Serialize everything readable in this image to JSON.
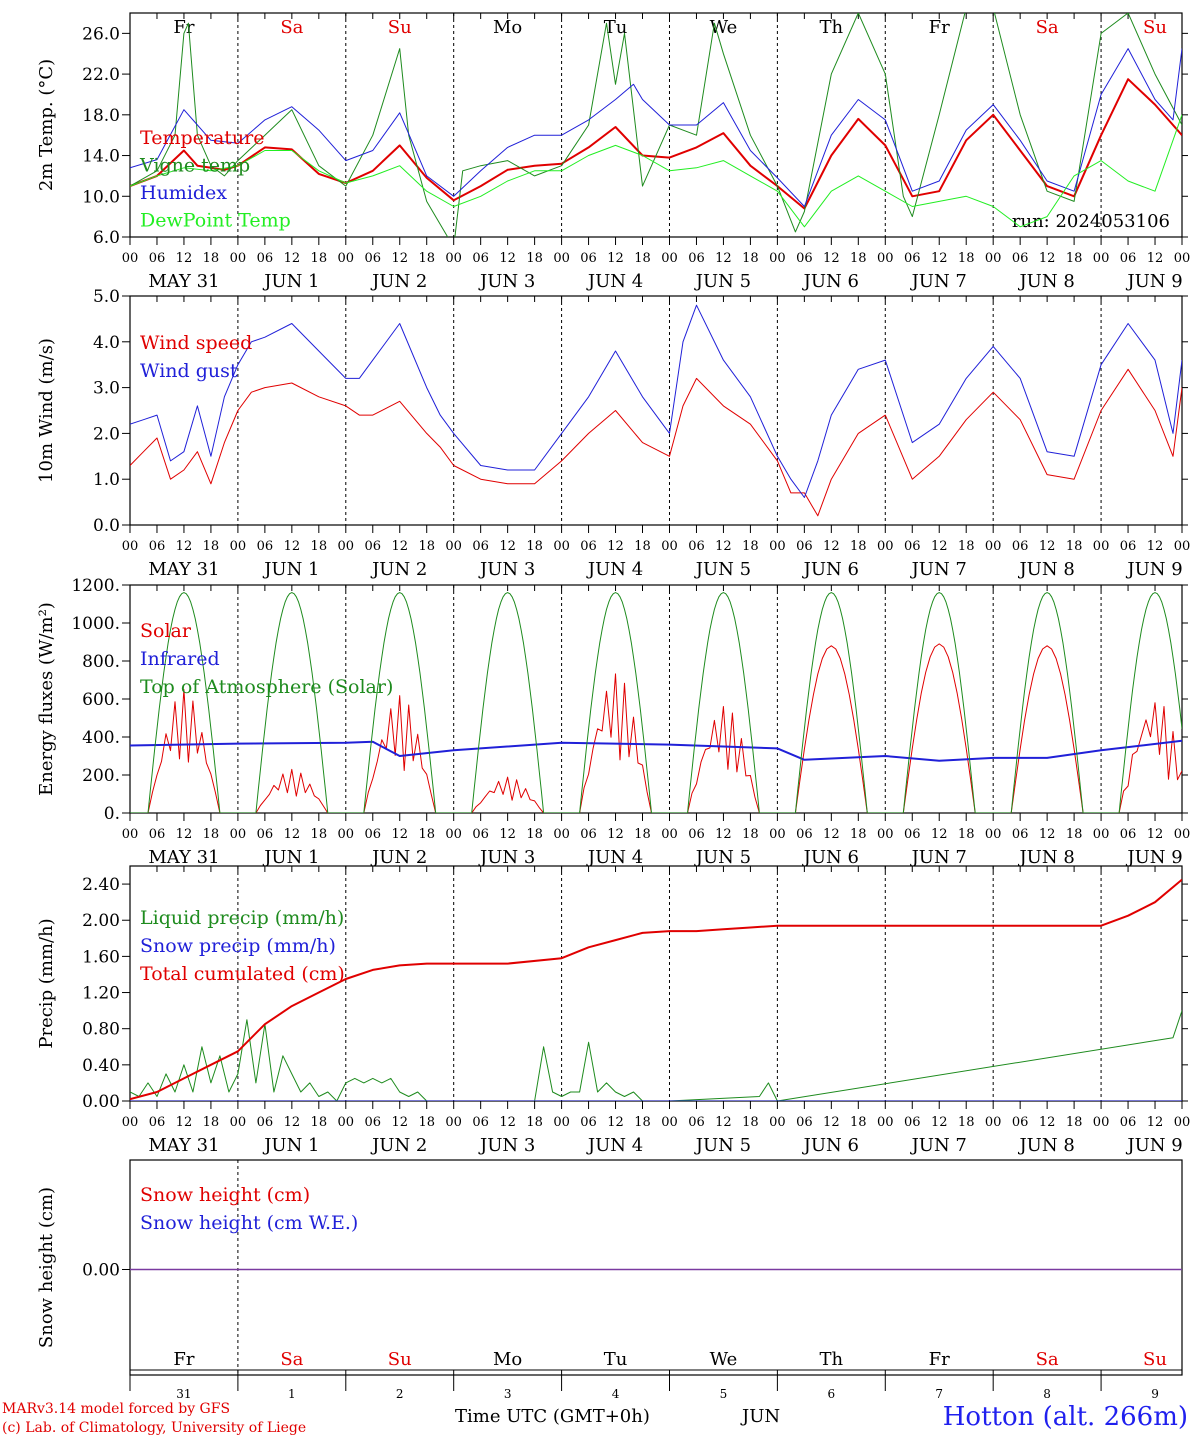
{
  "footer": {
    "model": "MARv3.14 model forced by GFS",
    "credit": "(c) Lab. of Climatology, University of Liege",
    "station": "Hotton (alt. 266m)",
    "time_title": "Time UTC (GMT+0h)",
    "month": "JUN"
  },
  "axis": {
    "hour_ticks": [
      "00",
      "06",
      "12",
      "18"
    ],
    "final_tick": "00",
    "dates": [
      "MAY 31",
      "JUN  1",
      "JUN  2",
      "JUN  3",
      "JUN  4",
      "JUN  5",
      "JUN  6",
      "JUN  7",
      "JUN  8",
      "JUN  9"
    ],
    "weekdays": [
      "Fr",
      "Sa",
      "Su",
      "Mo",
      "Tu",
      "We",
      "Th",
      "Fr",
      "Sa",
      "Su"
    ],
    "weekend_color": "#e00000",
    "weekday_color": "#000000",
    "day_numbers": [
      "31",
      "1",
      "2",
      "3",
      "4",
      "5",
      "6",
      "7",
      "8",
      "9"
    ]
  },
  "chart_data": [
    {
      "type": "line",
      "ylabel": "2m Temp. (°C)",
      "ylim": [
        6,
        28
      ],
      "yticks": [
        "6.0",
        "10.0",
        "14.0",
        "18.0",
        "22.0",
        "26.0"
      ],
      "annotation": "run: 2024053106",
      "x_unit": "hours since MAY 31 00 UTC",
      "series": [
        {
          "name": "Temperature",
          "color": "#e00000",
          "width": 2,
          "x": [
            0,
            6,
            12,
            15,
            18,
            21,
            24,
            30,
            36,
            42,
            48,
            54,
            60,
            66,
            72,
            78,
            84,
            90,
            96,
            102,
            108,
            114,
            120,
            126,
            132,
            138,
            144,
            150,
            156,
            162,
            168,
            174,
            180,
            186,
            192,
            198,
            204,
            210,
            216,
            222,
            228,
            234
          ],
          "y": [
            11.0,
            12.0,
            14.5,
            13.0,
            12.8,
            12.6,
            13.0,
            14.8,
            14.6,
            12.2,
            11.3,
            12.5,
            15.0,
            11.8,
            9.6,
            11.0,
            12.6,
            13.0,
            13.2,
            14.8,
            16.8,
            14.0,
            13.8,
            14.8,
            16.2,
            13.0,
            11.0,
            8.8,
            14.0,
            17.6,
            15.0,
            10.0,
            10.5,
            15.5,
            18.0,
            14.5,
            11.0,
            10.0,
            16.0,
            21.5,
            19.0,
            16.0
          ]
        },
        {
          "name": "Vigne temp",
          "color": "#1e8b1e",
          "width": 1,
          "x": [
            0,
            6,
            10,
            12,
            13,
            15,
            18,
            21,
            24,
            30,
            36,
            42,
            48,
            54,
            60,
            62,
            66,
            72,
            74,
            78,
            84,
            90,
            96,
            102,
            106,
            108,
            110,
            114,
            120,
            126,
            130,
            132,
            138,
            144,
            148,
            150,
            156,
            162,
            168,
            172,
            174,
            180,
            186,
            192,
            198,
            204,
            210,
            216,
            222,
            228,
            234
          ],
          "y": [
            11.0,
            12.5,
            16.0,
            26.0,
            27.0,
            16.0,
            13.0,
            12.0,
            13.5,
            16.0,
            18.5,
            13.0,
            11.0,
            16.0,
            24.5,
            16.0,
            9.5,
            5.0,
            12.5,
            13.0,
            13.5,
            12.0,
            13.0,
            17.0,
            27.0,
            21.0,
            26.0,
            11.0,
            17.0,
            16.0,
            27.0,
            24.0,
            16.0,
            11.0,
            6.5,
            8.5,
            22.0,
            28.0,
            22.0,
            10.0,
            8.0,
            18.0,
            28.5,
            28.5,
            18.0,
            10.5,
            9.5,
            26.0,
            28.0,
            22.0,
            17.0
          ]
        },
        {
          "name": "Humidex",
          "color": "#2020d8",
          "width": 1,
          "x": [
            0,
            6,
            12,
            15,
            18,
            24,
            30,
            36,
            42,
            48,
            54,
            60,
            66,
            72,
            78,
            84,
            90,
            96,
            102,
            108,
            112,
            114,
            120,
            126,
            132,
            138,
            144,
            150,
            156,
            162,
            168,
            174,
            180,
            186,
            192,
            198,
            204,
            210,
            216,
            222,
            228,
            232,
            234
          ],
          "y": [
            12.8,
            13.6,
            18.5,
            17.0,
            15.5,
            15.2,
            17.5,
            18.8,
            16.5,
            13.5,
            14.5,
            18.2,
            12.0,
            10.0,
            12.5,
            14.8,
            16.0,
            16.0,
            17.5,
            19.5,
            21.0,
            19.5,
            17.0,
            17.0,
            19.2,
            14.5,
            11.8,
            9.0,
            16.0,
            19.5,
            17.5,
            10.5,
            11.5,
            16.5,
            19.0,
            15.5,
            11.5,
            10.5,
            20.0,
            24.5,
            19.5,
            17.5,
            24.5
          ]
        },
        {
          "name": "DewPoint Temp",
          "color": "#22ee22",
          "width": 1,
          "x": [
            0,
            6,
            12,
            18,
            24,
            30,
            36,
            42,
            48,
            54,
            60,
            66,
            72,
            78,
            84,
            90,
            96,
            102,
            108,
            114,
            120,
            126,
            132,
            138,
            144,
            150,
            156,
            162,
            168,
            174,
            180,
            186,
            192,
            198,
            204,
            210,
            216,
            222,
            228,
            234
          ],
          "y": [
            11.0,
            12.0,
            12.8,
            12.5,
            13.0,
            14.5,
            14.5,
            12.5,
            11.3,
            12.0,
            13.0,
            10.5,
            9.0,
            10.0,
            11.5,
            12.5,
            12.5,
            14.0,
            15.0,
            14.0,
            12.5,
            12.8,
            13.5,
            12.0,
            10.5,
            7.0,
            10.5,
            12.0,
            10.5,
            9.0,
            9.5,
            10.0,
            9.0,
            7.0,
            8.0,
            12.0,
            13.5,
            11.5,
            10.5,
            18.0
          ]
        }
      ]
    },
    {
      "type": "line",
      "ylabel": "10m Wind (m/s)",
      "ylim": [
        0,
        5
      ],
      "yticks": [
        "0.0",
        "1.0",
        "2.0",
        "3.0",
        "4.0",
        "5.0"
      ],
      "x_unit": "hours since MAY 31 00 UTC",
      "series": [
        {
          "name": "Wind speed",
          "color": "#e00000",
          "width": 1,
          "x": [
            0,
            3,
            6,
            9,
            12,
            15,
            18,
            21,
            24,
            27,
            30,
            36,
            42,
            48,
            51,
            54,
            60,
            66,
            69,
            72,
            78,
            84,
            90,
            96,
            102,
            108,
            114,
            120,
            123,
            126,
            132,
            138,
            144,
            147,
            150,
            153,
            156,
            162,
            168,
            174,
            180,
            186,
            192,
            198,
            204,
            210,
            216,
            222,
            228,
            232,
            234
          ],
          "y": [
            1.3,
            1.6,
            1.9,
            1.0,
            1.2,
            1.6,
            0.9,
            1.8,
            2.5,
            2.9,
            3.0,
            3.1,
            2.8,
            2.6,
            2.4,
            2.4,
            2.7,
            2.0,
            1.7,
            1.3,
            1.0,
            0.9,
            0.9,
            1.4,
            2.0,
            2.5,
            1.8,
            1.5,
            2.6,
            3.2,
            2.6,
            2.2,
            1.4,
            0.7,
            0.7,
            0.2,
            1.0,
            2.0,
            2.4,
            1.0,
            1.5,
            2.3,
            2.9,
            2.3,
            1.1,
            1.0,
            2.5,
            3.4,
            2.5,
            1.5,
            3.0
          ]
        },
        {
          "name": "Wind gust",
          "color": "#2020d8",
          "width": 1,
          "x": [
            0,
            3,
            6,
            9,
            12,
            15,
            18,
            21,
            24,
            27,
            30,
            36,
            42,
            48,
            51,
            54,
            60,
            66,
            69,
            72,
            78,
            84,
            90,
            96,
            102,
            108,
            114,
            120,
            123,
            126,
            132,
            138,
            144,
            147,
            150,
            153,
            156,
            162,
            168,
            174,
            180,
            186,
            192,
            198,
            204,
            210,
            216,
            222,
            228,
            232,
            234
          ],
          "y": [
            2.2,
            2.3,
            2.4,
            1.4,
            1.6,
            2.6,
            1.5,
            2.8,
            3.5,
            4.0,
            4.1,
            4.4,
            3.8,
            3.2,
            3.2,
            3.6,
            4.4,
            3.0,
            2.4,
            2.0,
            1.3,
            1.2,
            1.2,
            2.0,
            2.8,
            3.8,
            2.8,
            2.0,
            4.0,
            4.8,
            3.6,
            2.8,
            1.5,
            1.0,
            0.6,
            1.4,
            2.4,
            3.4,
            3.6,
            1.8,
            2.2,
            3.2,
            3.9,
            3.2,
            1.6,
            1.5,
            3.5,
            4.4,
            3.6,
            2.0,
            3.6
          ]
        }
      ]
    },
    {
      "type": "line",
      "ylabel": "Energy fluxes (W/m²)",
      "ylim": [
        0,
        1200
      ],
      "yticks": [
        "0.",
        "200.",
        "400.",
        "600.",
        "800.",
        "1000.",
        "1200."
      ],
      "x_unit": "hours since MAY 31 00 UTC",
      "series": [
        {
          "name": "Solar",
          "color": "#e00000",
          "width": 1,
          "daily_peaks": [
            650,
            230,
            620,
            190,
            740,
            570,
            880,
            890,
            880,
            610
          ]
        },
        {
          "name": "Infrared",
          "color": "#2020d8",
          "width": 2,
          "x": [
            0,
            24,
            48,
            54,
            60,
            72,
            96,
            120,
            132,
            144,
            150,
            168,
            180,
            192,
            204,
            216,
            234
          ],
          "y": [
            355,
            365,
            370,
            375,
            300,
            330,
            370,
            360,
            350,
            340,
            280,
            300,
            275,
            290,
            290,
            330,
            380
          ]
        },
        {
          "name": "Top of Atmosphere (Solar)",
          "color": "#1e8b1e",
          "width": 1,
          "peak": 1160,
          "sunrise_hour": 4,
          "sunset_hour": 20
        }
      ]
    },
    {
      "type": "line",
      "ylabel": "Precip (mm/h)",
      "ylim": [
        0,
        2.6
      ],
      "yticks": [
        "0.00",
        "0.40",
        "0.80",
        "1.20",
        "1.60",
        "2.00",
        "2.40"
      ],
      "x_unit": "hours since MAY 31 00 UTC",
      "series": [
        {
          "name": "Liquid precip (mm/h)",
          "color": "#1e8b1e",
          "width": 1,
          "x": [
            0,
            2,
            4,
            6,
            8,
            10,
            12,
            14,
            16,
            18,
            20,
            22,
            24,
            26,
            28,
            30,
            32,
            34,
            36,
            38,
            40,
            42,
            44,
            46,
            48,
            50,
            52,
            54,
            56,
            58,
            60,
            62,
            64,
            66,
            70,
            90,
            92,
            94,
            96,
            98,
            100,
            102,
            104,
            106,
            108,
            110,
            112,
            114,
            116,
            120,
            140,
            142,
            144,
            232,
            234
          ],
          "y": [
            0.1,
            0.05,
            0.2,
            0.05,
            0.3,
            0.1,
            0.4,
            0.1,
            0.6,
            0.2,
            0.5,
            0.1,
            0.3,
            0.9,
            0.2,
            0.85,
            0.1,
            0.5,
            0.3,
            0.1,
            0.2,
            0.05,
            0.1,
            0.0,
            0.2,
            0.25,
            0.2,
            0.25,
            0.2,
            0.25,
            0.1,
            0.05,
            0.1,
            0.0,
            0.0,
            0.0,
            0.6,
            0.1,
            0.05,
            0.1,
            0.1,
            0.65,
            0.1,
            0.2,
            0.1,
            0.05,
            0.1,
            0.0,
            0.0,
            0.0,
            0.05,
            0.2,
            0.0,
            0.7,
            1.0
          ]
        },
        {
          "name": "Snow precip (mm/h)",
          "color": "#2020d8",
          "width": 1,
          "x": [
            0,
            234
          ],
          "y": [
            0.0,
            0.0
          ]
        },
        {
          "name": "Total cumulated (cm)",
          "color": "#e00000",
          "width": 2,
          "x": [
            0,
            6,
            12,
            18,
            24,
            30,
            36,
            42,
            48,
            54,
            60,
            66,
            72,
            84,
            96,
            102,
            108,
            114,
            120,
            126,
            132,
            138,
            144,
            168,
            192,
            216,
            222,
            228,
            234
          ],
          "y": [
            0.02,
            0.1,
            0.25,
            0.4,
            0.55,
            0.85,
            1.05,
            1.2,
            1.35,
            1.45,
            1.5,
            1.52,
            1.52,
            1.52,
            1.58,
            1.7,
            1.78,
            1.86,
            1.88,
            1.88,
            1.9,
            1.92,
            1.94,
            1.94,
            1.94,
            1.94,
            2.05,
            2.2,
            2.45
          ]
        }
      ]
    },
    {
      "type": "line",
      "ylabel": "Snow height (cm)",
      "yticks": [
        "0.00"
      ],
      "x_unit": "hours since MAY 31 00 UTC",
      "series": [
        {
          "name": "Snow height (cm)",
          "color": "#e00000",
          "width": 1,
          "x": [
            0,
            234
          ],
          "y": [
            0,
            0
          ]
        },
        {
          "name": "Snow height (cm W.E.)",
          "color": "#2020d8",
          "width": 1,
          "x": [
            0,
            234
          ],
          "y": [
            0,
            0
          ]
        }
      ]
    }
  ]
}
